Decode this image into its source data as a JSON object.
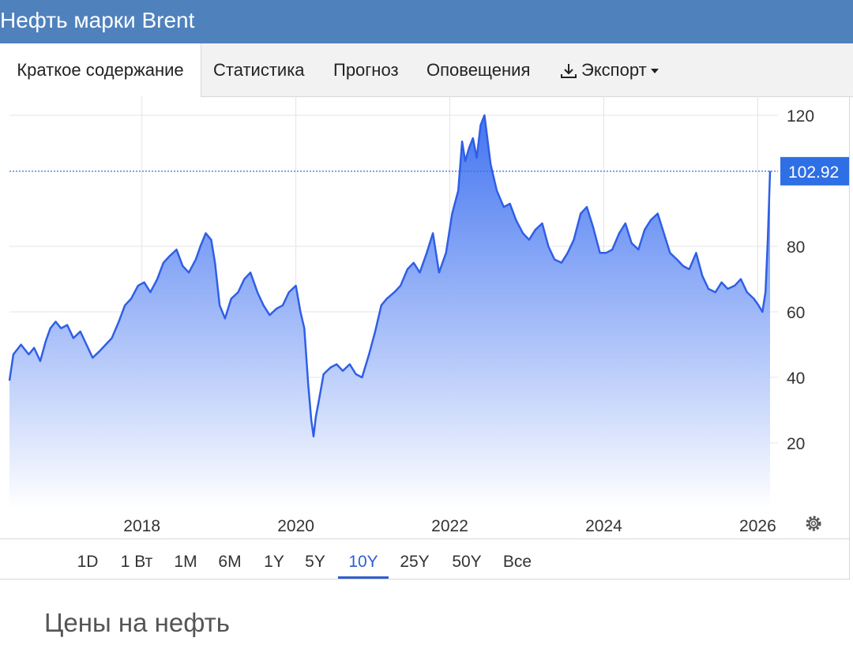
{
  "header": {
    "title": "Нефть марки Brent"
  },
  "tabs": [
    {
      "label": "Краткое содержание",
      "active": true
    },
    {
      "label": "Статистика"
    },
    {
      "label": "Прогноз"
    },
    {
      "label": "Оповещения"
    },
    {
      "label": "Экспорт",
      "icon": "download-icon",
      "dropdown": true
    }
  ],
  "ranges": [
    "1D",
    "1 Вт",
    "1M",
    "6M",
    "1Y",
    "5Y",
    "10Y",
    "25Y",
    "50Y",
    "Все"
  ],
  "active_range": "10Y",
  "caption": "Цены на нефть",
  "colors": {
    "header": "#4f81bd",
    "line": "#2f5fe6",
    "accent": "#2f5fcf",
    "label_bg": "#2f6fe6"
  },
  "chart_data": {
    "type": "area",
    "title": "",
    "xlabel": "",
    "ylabel": "",
    "x_ticks": [
      "2018",
      "2020",
      "2022",
      "2024",
      "2026"
    ],
    "y_ticks": [
      20,
      40,
      60,
      80,
      120
    ],
    "ylim": [
      0,
      125
    ],
    "grid": true,
    "last_value": "102.92",
    "series": [
      {
        "x": [
          2016.3,
          2016.35,
          2016.45,
          2016.55,
          2016.62,
          2016.7,
          2016.77,
          2016.83,
          2016.9,
          2016.97,
          2017.05,
          2017.13,
          2017.22,
          2017.3,
          2017.38,
          2017.47,
          2017.55,
          2017.63,
          2017.72,
          2017.8,
          2017.88,
          2017.97,
          2018.05,
          2018.13,
          2018.22,
          2018.3,
          2018.38,
          2018.47,
          2018.55,
          2018.63,
          2018.72,
          2018.78,
          2018.85,
          2018.92,
          2018.97,
          2019.03,
          2019.1,
          2019.18,
          2019.27,
          2019.35,
          2019.43,
          2019.52,
          2019.6,
          2019.68,
          2019.77,
          2019.85,
          2019.93,
          2020.02,
          2020.08,
          2020.13,
          2020.18,
          2020.22,
          2020.25,
          2020.28,
          2020.32,
          2020.38,
          2020.47,
          2020.55,
          2020.63,
          2020.72,
          2020.8,
          2020.88,
          2020.97,
          2021.05,
          2021.13,
          2021.2,
          2021.3,
          2021.38,
          2021.47,
          2021.55,
          2021.63,
          2021.72,
          2021.8,
          2021.88,
          2021.97,
          2022.05,
          2022.13,
          2022.18,
          2022.22,
          2022.27,
          2022.32,
          2022.37,
          2022.42,
          2022.47,
          2022.55,
          2022.63,
          2022.72,
          2022.8,
          2022.88,
          2022.97,
          2023.05,
          2023.13,
          2023.22,
          2023.3,
          2023.38,
          2023.47,
          2023.55,
          2023.63,
          2023.72,
          2023.8,
          2023.88,
          2023.97,
          2024.05,
          2024.13,
          2024.22,
          2024.3,
          2024.38,
          2024.47,
          2024.55,
          2024.63,
          2024.72,
          2024.8,
          2024.88,
          2024.97,
          2025.05,
          2025.13,
          2025.22,
          2025.3,
          2025.38,
          2025.47,
          2025.55,
          2025.63,
          2025.72,
          2025.8,
          2025.88,
          2025.97,
          2026.03,
          2026.08,
          2026.12,
          2026.15,
          2026.18
        ],
        "values": [
          39,
          47,
          50,
          47,
          49,
          45,
          51,
          55,
          57,
          55,
          56,
          52,
          54,
          50,
          46,
          48,
          50,
          52,
          57,
          62,
          64,
          68,
          69,
          66,
          70,
          75,
          77,
          79,
          74,
          72,
          76,
          80,
          84,
          82,
          75,
          62,
          58,
          64,
          66,
          70,
          72,
          66,
          62,
          59,
          61,
          62,
          66,
          68,
          60,
          55,
          38,
          27,
          22,
          28,
          33,
          41,
          43,
          44,
          42,
          44,
          41,
          40,
          47,
          54,
          62,
          64,
          66,
          68,
          73,
          75,
          72,
          78,
          84,
          72,
          78,
          90,
          97,
          112,
          106,
          110,
          113,
          107,
          117,
          120,
          105,
          97,
          92,
          93,
          88,
          84,
          82,
          85,
          87,
          80,
          76,
          75,
          78,
          82,
          90,
          92,
          86,
          78,
          78,
          79,
          84,
          87,
          81,
          79,
          85,
          88,
          90,
          84,
          78,
          76,
          74,
          73,
          78,
          71,
          67,
          66,
          69,
          67,
          68,
          70,
          66,
          64,
          62,
          60,
          66,
          82,
          103
        ]
      }
    ]
  }
}
